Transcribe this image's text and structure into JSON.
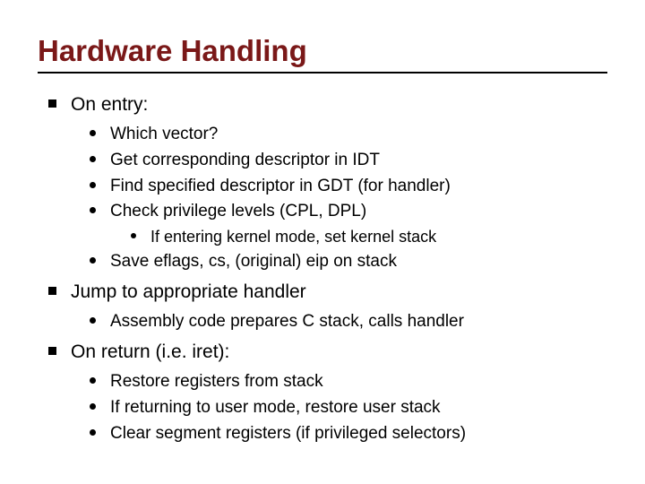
{
  "title": "Hardware Handling",
  "title_color": "#7a1818",
  "sections": {
    "s1": {
      "label": "On entry:",
      "items": {
        "i1": "Which vector?",
        "i2": "Get corresponding descriptor in IDT",
        "i3": "Find specified descriptor in GDT (for handler)",
        "i4": "Check privilege levels (CPL, DPL)",
        "i4_sub1": "If entering kernel mode, set kernel stack",
        "i5": "Save eflags, cs, (original) eip on stack"
      }
    },
    "s2": {
      "label": "Jump to appropriate handler",
      "items": {
        "i1": "Assembly code prepares C stack, calls handler"
      }
    },
    "s3": {
      "label": "On return (i.e. iret):",
      "items": {
        "i1": "Restore registers from stack",
        "i2": "If returning to user mode, restore user stack",
        "i3": "Clear segment registers (if privileged selectors)"
      }
    }
  },
  "styling": {
    "background_color": "#ffffff",
    "text_color": "#000000",
    "title_fontsize": 33,
    "l1_fontsize": 21,
    "l2_fontsize": 19,
    "l3_fontsize": 18,
    "bullet_l1": {
      "shape": "square",
      "size": 9,
      "color": "#000000"
    },
    "bullet_l2": {
      "shape": "circle",
      "size": 7,
      "color": "#000000"
    },
    "bullet_l3": {
      "shape": "circle",
      "size": 6,
      "color": "#000000"
    },
    "underline_color": "#000000"
  }
}
